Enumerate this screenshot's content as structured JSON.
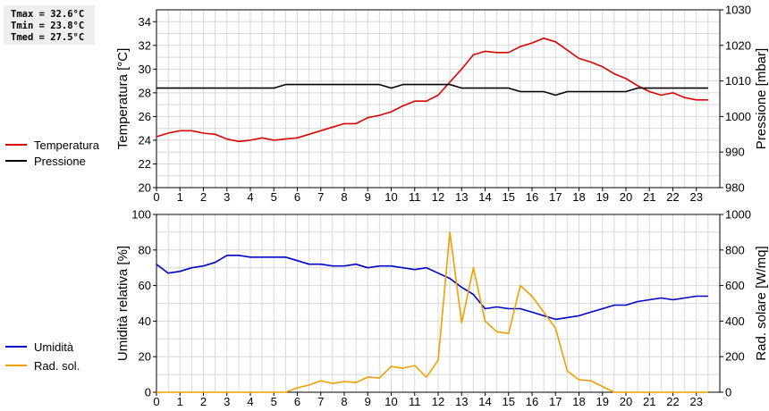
{
  "stats": {
    "tmax": "Tmax = 32.6°C",
    "tmin": "Tmin = 23.8°C",
    "tmed": "Tmed = 27.5°C"
  },
  "chart_data": [
    {
      "type": "line",
      "xlim": [
        0,
        24
      ],
      "x_ticks": [
        "0",
        "1",
        "2",
        "3",
        "4",
        "5",
        "6",
        "7",
        "8",
        "9",
        "10",
        "11",
        "12",
        "13",
        "14",
        "15",
        "16",
        "17",
        "18",
        "19",
        "20",
        "21",
        "22",
        "23"
      ],
      "ylabel": "Temperatura [°C]",
      "ylim": [
        20,
        35
      ],
      "y_ticks": [
        20,
        22,
        24,
        26,
        28,
        30,
        32,
        34
      ],
      "y2label": "Pressione [mbar]",
      "y2lim": [
        980,
        1030
      ],
      "y2_ticks": [
        980,
        990,
        1000,
        1010,
        1020,
        1030
      ],
      "grid": true,
      "legend_position": "left",
      "series": [
        {
          "name": "Temperatura",
          "axis": "left",
          "color": "#dd0000",
          "points": [
            [
              0,
              24.3
            ],
            [
              0.5,
              24.6
            ],
            [
              1,
              24.8
            ],
            [
              1.5,
              24.8
            ],
            [
              2,
              24.6
            ],
            [
              2.5,
              24.5
            ],
            [
              3,
              24.1
            ],
            [
              3.5,
              23.9
            ],
            [
              4,
              24.0
            ],
            [
              4.5,
              24.2
            ],
            [
              5,
              24.0
            ],
            [
              5.5,
              24.1
            ],
            [
              6,
              24.2
            ],
            [
              6.5,
              24.5
            ],
            [
              7,
              24.8
            ],
            [
              7.5,
              25.1
            ],
            [
              8,
              25.4
            ],
            [
              8.5,
              25.4
            ],
            [
              9,
              25.9
            ],
            [
              9.5,
              26.1
            ],
            [
              10,
              26.4
            ],
            [
              10.5,
              26.9
            ],
            [
              11,
              27.3
            ],
            [
              11.5,
              27.3
            ],
            [
              12,
              27.8
            ],
            [
              12.5,
              28.9
            ],
            [
              13,
              30.0
            ],
            [
              13.5,
              31.2
            ],
            [
              14,
              31.5
            ],
            [
              14.5,
              31.4
            ],
            [
              15,
              31.4
            ],
            [
              15.5,
              31.9
            ],
            [
              16,
              32.2
            ],
            [
              16.5,
              32.6
            ],
            [
              17,
              32.3
            ],
            [
              17.5,
              31.6
            ],
            [
              18,
              30.9
            ],
            [
              18.5,
              30.6
            ],
            [
              19,
              30.2
            ],
            [
              19.5,
              29.6
            ],
            [
              20,
              29.2
            ],
            [
              20.5,
              28.6
            ],
            [
              21,
              28.1
            ],
            [
              21.5,
              27.8
            ],
            [
              22,
              28.0
            ],
            [
              22.5,
              27.6
            ],
            [
              23,
              27.4
            ],
            [
              23.5,
              27.4
            ]
          ]
        },
        {
          "name": "Pressione",
          "axis": "right",
          "color": "#000000",
          "points": [
            [
              0,
              1008
            ],
            [
              5,
              1008
            ],
            [
              5.5,
              1009
            ],
            [
              9.5,
              1009
            ],
            [
              10,
              1008
            ],
            [
              10.5,
              1009
            ],
            [
              12.5,
              1009
            ],
            [
              13,
              1008
            ],
            [
              15,
              1008
            ],
            [
              15.5,
              1007
            ],
            [
              16.5,
              1007
            ],
            [
              17,
              1006
            ],
            [
              17.5,
              1007
            ],
            [
              20,
              1007
            ],
            [
              20.5,
              1008
            ],
            [
              23.5,
              1008
            ]
          ]
        }
      ]
    },
    {
      "type": "line",
      "xlim": [
        0,
        24
      ],
      "x_ticks": [
        "0",
        "1",
        "2",
        "3",
        "4",
        "5",
        "6",
        "7",
        "8",
        "9",
        "10",
        "11",
        "12",
        "13",
        "14",
        "15",
        "16",
        "17",
        "18",
        "19",
        "20",
        "21",
        "22",
        "23"
      ],
      "ylabel": "Umidità relativa [%]",
      "ylim": [
        0,
        100
      ],
      "y_ticks": [
        0,
        20,
        40,
        60,
        80,
        100
      ],
      "y2label": "Rad. solare [W/mq]",
      "y2lim": [
        0,
        1000
      ],
      "y2_ticks": [
        0,
        200,
        400,
        600,
        800,
        1000
      ],
      "grid": true,
      "legend_position": "left",
      "series": [
        {
          "name": "Umidità",
          "axis": "left",
          "color": "#0000cc",
          "points": [
            [
              0,
              72
            ],
            [
              0.5,
              67
            ],
            [
              1,
              68
            ],
            [
              1.5,
              70
            ],
            [
              2,
              71
            ],
            [
              2.5,
              73
            ],
            [
              3,
              77
            ],
            [
              3.5,
              77
            ],
            [
              4,
              76
            ],
            [
              5,
              76
            ],
            [
              5.5,
              76
            ],
            [
              6,
              74
            ],
            [
              6.5,
              72
            ],
            [
              7,
              72
            ],
            [
              7.5,
              71
            ],
            [
              8,
              71
            ],
            [
              8.5,
              72
            ],
            [
              9,
              70
            ],
            [
              9.5,
              71
            ],
            [
              10,
              71
            ],
            [
              10.5,
              70
            ],
            [
              11,
              69
            ],
            [
              11.5,
              70
            ],
            [
              12,
              67
            ],
            [
              12.5,
              64
            ],
            [
              13,
              59
            ],
            [
              13.5,
              55
            ],
            [
              14,
              47
            ],
            [
              14.5,
              48
            ],
            [
              15,
              47
            ],
            [
              15.5,
              47
            ],
            [
              16,
              45
            ],
            [
              16.5,
              43
            ],
            [
              17,
              41
            ],
            [
              17.5,
              42
            ],
            [
              18,
              43
            ],
            [
              18.5,
              45
            ],
            [
              19,
              47
            ],
            [
              19.5,
              49
            ],
            [
              20,
              49
            ],
            [
              20.5,
              51
            ],
            [
              21,
              52
            ],
            [
              21.5,
              53
            ],
            [
              22,
              52
            ],
            [
              22.5,
              53
            ],
            [
              23,
              54
            ],
            [
              23.5,
              54
            ]
          ]
        },
        {
          "name": "Rad. sol.",
          "axis": "right",
          "color": "#f0a000",
          "points": [
            [
              0,
              0
            ],
            [
              5.5,
              0
            ],
            [
              6,
              25
            ],
            [
              6.5,
              40
            ],
            [
              7,
              65
            ],
            [
              7.5,
              50
            ],
            [
              8,
              60
            ],
            [
              8.5,
              55
            ],
            [
              9,
              85
            ],
            [
              9.5,
              80
            ],
            [
              10,
              145
            ],
            [
              10.5,
              135
            ],
            [
              11,
              150
            ],
            [
              11.5,
              85
            ],
            [
              12,
              180
            ],
            [
              12.5,
              900
            ],
            [
              13,
              390
            ],
            [
              13.5,
              700
            ],
            [
              14,
              400
            ],
            [
              14.5,
              340
            ],
            [
              15,
              330
            ],
            [
              15.5,
              600
            ],
            [
              16,
              540
            ],
            [
              16.5,
              450
            ],
            [
              17,
              360
            ],
            [
              17.5,
              120
            ],
            [
              18,
              70
            ],
            [
              18.5,
              65
            ],
            [
              19.5,
              0
            ],
            [
              23.5,
              0
            ]
          ]
        }
      ]
    }
  ]
}
